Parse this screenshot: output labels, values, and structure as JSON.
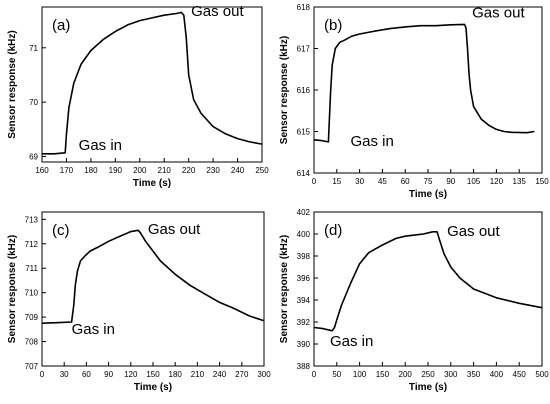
{
  "chart_data": [
    {
      "type": "line",
      "panel_label": "(a)",
      "xlabel": "Time (s)",
      "ylabel": "Sensor response (kHz)",
      "xlim": [
        160,
        250
      ],
      "ylim": [
        68.9,
        71.75
      ],
      "xticks": [
        160,
        170,
        180,
        190,
        200,
        210,
        220,
        230,
        240,
        250
      ],
      "yticks": [
        69,
        70,
        71
      ],
      "annotations": [
        {
          "text": "Gas in",
          "x": 175,
          "y": 69.12
        },
        {
          "text": "Gas out",
          "x": 221,
          "y": 71.58
        }
      ],
      "series": [
        {
          "x": [
            160,
            165,
            169.5,
            170,
            171,
            173,
            176,
            180,
            185,
            190,
            195,
            200,
            205,
            210,
            215,
            217,
            218,
            219,
            220,
            222,
            225,
            230,
            235,
            240,
            245,
            250
          ],
          "y": [
            69.05,
            69.05,
            69.07,
            69.4,
            69.9,
            70.35,
            70.7,
            70.95,
            71.15,
            71.3,
            71.42,
            71.5,
            71.55,
            71.6,
            71.63,
            71.65,
            71.6,
            71.2,
            70.5,
            70.05,
            69.8,
            69.55,
            69.42,
            69.33,
            69.27,
            69.23
          ]
        }
      ]
    },
    {
      "type": "line",
      "panel_label": "(b)",
      "xlabel": "Time (s)",
      "ylabel": "Sensor response (kHz)",
      "xlim": [
        0,
        150
      ],
      "ylim": [
        614,
        618
      ],
      "xticks": [
        0,
        15,
        30,
        45,
        60,
        75,
        90,
        105,
        120,
        135,
        150
      ],
      "yticks": [
        614,
        615,
        616,
        617,
        618
      ],
      "annotations": [
        {
          "text": "Gas in",
          "x": 24,
          "y": 614.65
        },
        {
          "text": "Gas out",
          "x": 104,
          "y": 617.75
        }
      ],
      "series": [
        {
          "x": [
            0,
            5,
            9.5,
            10,
            11,
            12,
            14,
            17,
            20,
            25,
            30,
            40,
            50,
            60,
            70,
            80,
            90,
            99,
            100,
            101,
            102,
            103,
            105,
            110,
            115,
            120,
            125,
            130,
            140,
            145
          ],
          "y": [
            614.8,
            614.78,
            614.75,
            615.2,
            616.0,
            616.6,
            617.0,
            617.15,
            617.2,
            617.3,
            617.35,
            617.42,
            617.48,
            617.52,
            617.55,
            617.55,
            617.57,
            617.58,
            617.5,
            617.0,
            616.4,
            616.0,
            615.6,
            615.3,
            615.15,
            615.05,
            615.0,
            614.98,
            614.97,
            615.0
          ]
        }
      ]
    },
    {
      "type": "line",
      "panel_label": "(c)",
      "xlabel": "Time (s)",
      "ylabel": "Sensor response (kHz)",
      "xlim": [
        0,
        300
      ],
      "ylim": [
        707,
        713.3
      ],
      "xticks": [
        0,
        30,
        60,
        90,
        120,
        150,
        180,
        210,
        240,
        270,
        300
      ],
      "yticks": [
        707,
        708,
        709,
        710,
        711,
        712,
        713
      ],
      "annotations": [
        {
          "text": "Gas in",
          "x": 40,
          "y": 708.3
        },
        {
          "text": "Gas out",
          "x": 143,
          "y": 712.4
        }
      ],
      "series": [
        {
          "x": [
            0,
            20,
            40,
            43,
            45,
            48,
            52,
            58,
            65,
            75,
            90,
            105,
            120,
            130,
            133,
            140,
            150,
            160,
            180,
            200,
            220,
            240,
            260,
            280,
            300
          ],
          "y": [
            708.75,
            708.77,
            708.8,
            709.5,
            710.3,
            710.9,
            711.3,
            711.5,
            711.7,
            711.85,
            712.1,
            712.3,
            712.5,
            712.55,
            712.45,
            712.1,
            711.7,
            711.3,
            710.75,
            710.3,
            709.95,
            709.6,
            709.35,
            709.05,
            708.85
          ]
        }
      ]
    },
    {
      "type": "line",
      "panel_label": "(d)",
      "xlabel": "Time (s)",
      "ylabel": "Sensor response (kHz)",
      "xlim": [
        0,
        500
      ],
      "ylim": [
        388,
        402
      ],
      "xticks": [
        0,
        50,
        100,
        150,
        200,
        250,
        300,
        350,
        400,
        450,
        500
      ],
      "yticks": [
        388,
        390,
        392,
        394,
        396,
        398,
        400,
        402
      ],
      "annotations": [
        {
          "text": "Gas in",
          "x": 35,
          "y": 389.8
        },
        {
          "text": "Gas out",
          "x": 292,
          "y": 399.8
        }
      ],
      "series": [
        {
          "x": [
            0,
            20,
            40,
            45,
            50,
            60,
            80,
            100,
            120,
            150,
            180,
            200,
            220,
            240,
            260,
            270,
            275,
            285,
            300,
            320,
            350,
            400,
            450,
            500
          ],
          "y": [
            391.5,
            391.4,
            391.2,
            391.5,
            392.2,
            393.5,
            395.5,
            397.3,
            398.3,
            399.0,
            399.6,
            399.8,
            399.9,
            400.0,
            400.2,
            400.2,
            399.5,
            398.2,
            397.0,
            396.0,
            395.0,
            394.2,
            393.7,
            393.3
          ]
        }
      ]
    }
  ]
}
